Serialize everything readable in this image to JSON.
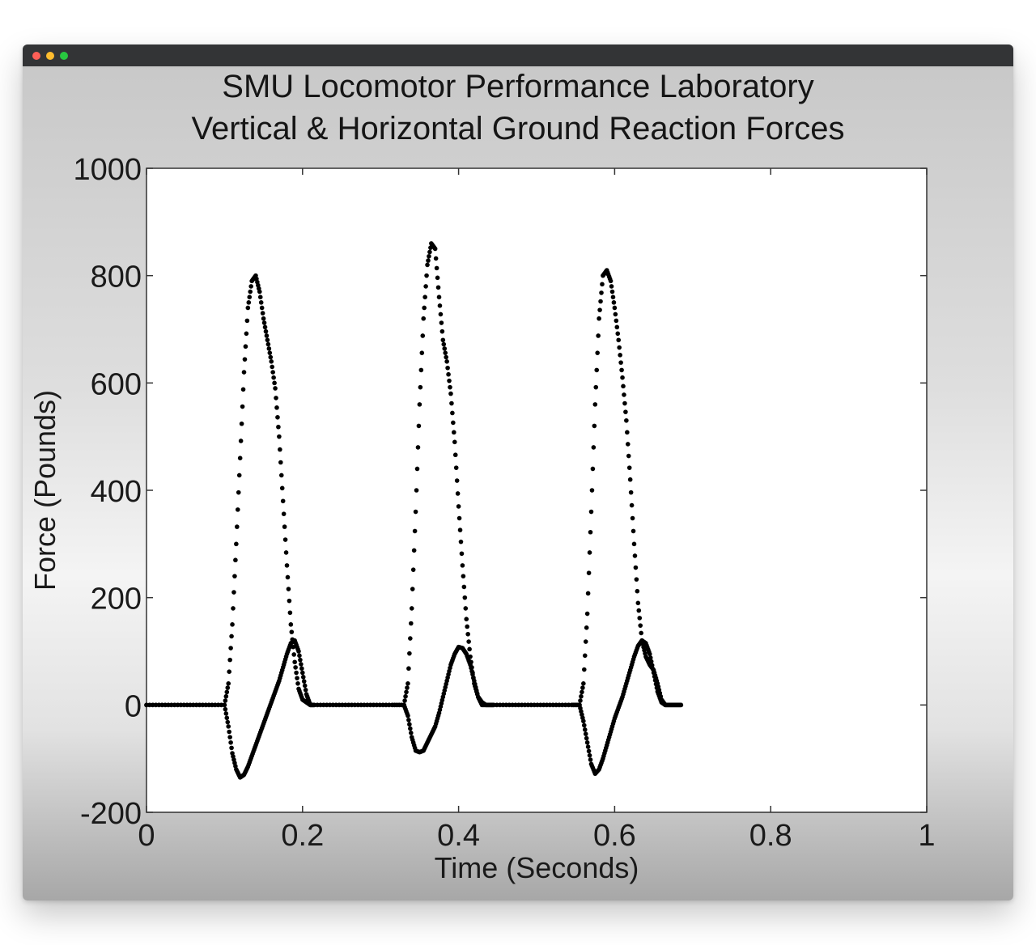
{
  "window": {
    "controls": [
      "close",
      "minimize",
      "maximize"
    ]
  },
  "chart_data": {
    "type": "scatter",
    "title": "SMU Locomotor Performance Laboratory",
    "subtitle": "Vertical & Horizontal Ground Reaction Forces",
    "xlabel": "Time (Seconds)",
    "ylabel": "Force (Pounds)",
    "xlim": [
      0,
      1
    ],
    "ylim": [
      -200,
      1000
    ],
    "x_ticks": [
      "0",
      "0.2",
      "0.4",
      "0.6",
      "0.8",
      "1"
    ],
    "y_ticks": [
      "-200",
      "0",
      "200",
      "400",
      "600",
      "800",
      "1000"
    ],
    "grid": false,
    "legend": "none",
    "marker_color": "#000000",
    "series": [
      {
        "x": [
          0.0,
          0.02,
          0.04,
          0.06,
          0.08,
          0.1,
          0.105,
          0.11,
          0.115,
          0.12,
          0.125,
          0.13,
          0.135,
          0.14,
          0.145,
          0.15,
          0.155,
          0.16,
          0.165,
          0.17,
          0.175,
          0.18,
          0.185,
          0.19,
          0.195,
          0.2,
          0.205,
          0.21,
          0.215,
          0.235,
          0.255,
          0.275,
          0.295,
          0.315,
          0.33,
          0.335,
          0.34,
          0.345,
          0.35,
          0.355,
          0.36,
          0.365,
          0.37,
          0.375,
          0.38,
          0.385,
          0.39,
          0.395,
          0.4,
          0.405,
          0.41,
          0.415,
          0.42,
          0.425,
          0.43,
          0.435,
          0.44,
          0.445,
          0.465,
          0.485,
          0.505,
          0.525,
          0.545,
          0.555,
          0.56,
          0.565,
          0.57,
          0.575,
          0.58,
          0.585,
          0.59,
          0.595,
          0.6,
          0.605,
          0.61,
          0.615,
          0.62,
          0.625,
          0.63,
          0.635,
          0.64,
          0.645,
          0.65,
          0.655,
          0.66,
          0.665,
          0.67,
          0.675,
          0.68,
          0.685
        ],
        "y": [
          0,
          0,
          0,
          0,
          0,
          0,
          40,
          150,
          300,
          460,
          620,
          740,
          790,
          800,
          770,
          720,
          680,
          640,
          590,
          500,
          380,
          260,
          150,
          80,
          30,
          10,
          5,
          0,
          0,
          0,
          0,
          0,
          0,
          0,
          0,
          40,
          180,
          360,
          560,
          720,
          820,
          860,
          850,
          760,
          680,
          640,
          580,
          490,
          370,
          260,
          160,
          90,
          40,
          15,
          5,
          0,
          0,
          0,
          0,
          0,
          0,
          0,
          0,
          0,
          40,
          170,
          360,
          560,
          720,
          800,
          810,
          790,
          740,
          680,
          610,
          530,
          420,
          300,
          190,
          120,
          90,
          75,
          65,
          40,
          10,
          0,
          0,
          0,
          0,
          0
        ]
      },
      {
        "x": [
          0.0,
          0.02,
          0.04,
          0.06,
          0.08,
          0.1,
          0.105,
          0.11,
          0.115,
          0.12,
          0.125,
          0.13,
          0.135,
          0.14,
          0.145,
          0.15,
          0.155,
          0.16,
          0.165,
          0.17,
          0.175,
          0.18,
          0.185,
          0.19,
          0.195,
          0.2,
          0.205,
          0.21,
          0.215,
          0.235,
          0.255,
          0.275,
          0.295,
          0.315,
          0.33,
          0.335,
          0.34,
          0.345,
          0.35,
          0.355,
          0.36,
          0.365,
          0.37,
          0.375,
          0.38,
          0.385,
          0.39,
          0.395,
          0.4,
          0.405,
          0.41,
          0.415,
          0.42,
          0.425,
          0.43,
          0.435,
          0.44,
          0.445,
          0.465,
          0.485,
          0.505,
          0.525,
          0.545,
          0.555,
          0.56,
          0.565,
          0.57,
          0.575,
          0.58,
          0.585,
          0.59,
          0.595,
          0.6,
          0.605,
          0.61,
          0.615,
          0.62,
          0.625,
          0.63,
          0.635,
          0.64,
          0.645,
          0.65,
          0.655,
          0.66,
          0.665,
          0.67,
          0.675,
          0.68,
          0.685
        ],
        "y": [
          0,
          0,
          0,
          0,
          0,
          0,
          -40,
          -90,
          -120,
          -135,
          -130,
          -115,
          -95,
          -75,
          -55,
          -35,
          -15,
          5,
          25,
          45,
          70,
          95,
          115,
          120,
          100,
          60,
          20,
          0,
          0,
          0,
          0,
          0,
          0,
          0,
          0,
          -20,
          -60,
          -85,
          -88,
          -85,
          -70,
          -55,
          -40,
          -15,
          15,
          45,
          75,
          95,
          108,
          106,
          95,
          75,
          45,
          15,
          0,
          0,
          0,
          0,
          0,
          0,
          0,
          0,
          0,
          0,
          -30,
          -70,
          -110,
          -128,
          -120,
          -100,
          -75,
          -50,
          -25,
          -5,
          15,
          40,
          65,
          90,
          110,
          120,
          115,
          95,
          60,
          25,
          5,
          0,
          0,
          0,
          0,
          0
        ]
      }
    ]
  }
}
